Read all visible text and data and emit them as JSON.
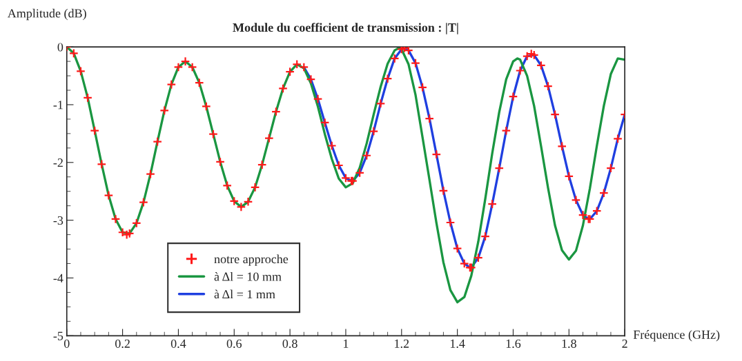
{
  "chart_data": {
    "type": "line",
    "title": "Module du coefficient de transmission : |T|",
    "xlabel": "Fréquence (GHz)",
    "ylabel": "Amplitude (dB)",
    "xlim": [
      0,
      2
    ],
    "ylim": [
      -5,
      0
    ],
    "xticks": [
      0,
      0.2,
      0.4,
      0.6,
      0.8,
      1,
      1.2,
      1.4,
      1.6,
      1.8,
      2
    ],
    "yticks": [
      0,
      {
        "value": -1,
        "label": "-1"
      },
      {
        "value": -2,
        "label": "-2"
      },
      {
        "value": -3,
        "label": "-3"
      },
      {
        "value": -4,
        "label": "-4"
      },
      {
        "value": -5,
        "label": "-5"
      }
    ],
    "grid": false,
    "legend": "bottom left",
    "x": [
      0,
      0.025,
      0.05,
      0.075,
      0.1,
      0.125,
      0.15,
      0.175,
      0.2,
      0.215,
      0.225,
      0.25,
      0.275,
      0.3,
      0.325,
      0.35,
      0.375,
      0.4,
      0.425,
      0.45,
      0.475,
      0.5,
      0.525,
      0.55,
      0.575,
      0.6,
      0.625,
      0.65,
      0.675,
      0.7,
      0.725,
      0.75,
      0.775,
      0.8,
      0.825,
      0.85,
      0.875,
      0.9,
      0.925,
      0.95,
      0.975,
      1.0,
      1.02,
      1.025,
      1.05,
      1.075,
      1.1,
      1.125,
      1.15,
      1.175,
      1.2,
      1.21,
      1.225,
      1.25,
      1.275,
      1.3,
      1.325,
      1.35,
      1.375,
      1.4,
      1.425,
      1.445,
      1.45,
      1.475,
      1.5,
      1.525,
      1.55,
      1.575,
      1.6,
      1.625,
      1.65,
      1.665,
      1.675,
      1.7,
      1.725,
      1.75,
      1.775,
      1.8,
      1.825,
      1.85,
      1.87,
      1.875,
      1.9,
      1.925,
      1.95,
      1.975,
      2.0
    ],
    "series": [
      {
        "name": "à Δl = 1 mm",
        "color": "#1f3fe0",
        "marker": "none",
        "line_style": "solid",
        "x": [
          0.85,
          0.875,
          0.9,
          0.925,
          0.95,
          0.975,
          1.0,
          1.02,
          1.025,
          1.05,
          1.075,
          1.1,
          1.125,
          1.15,
          1.175,
          1.2,
          1.21,
          1.225,
          1.25,
          1.275,
          1.3,
          1.325,
          1.35,
          1.375,
          1.4,
          1.425,
          1.445,
          1.45,
          1.475,
          1.5,
          1.525,
          1.55,
          1.575,
          1.6,
          1.625,
          1.65,
          1.675,
          1.7,
          1.725,
          1.75,
          1.775,
          1.8,
          1.825,
          1.85,
          1.87,
          1.875,
          1.9,
          1.925,
          1.95,
          1.975,
          2.0
        ],
        "values": [
          -0.35,
          -0.56,
          -0.9,
          -1.31,
          -1.71,
          -2.05,
          -2.27,
          -2.32,
          -2.32,
          -2.18,
          -1.88,
          -1.46,
          -0.98,
          -0.55,
          -0.2,
          -0.04,
          -0.02,
          -0.06,
          -0.28,
          -0.7,
          -1.24,
          -1.86,
          -2.49,
          -3.04,
          -3.49,
          -3.75,
          -3.82,
          -3.82,
          -3.65,
          -3.28,
          -2.72,
          -2.1,
          -1.45,
          -0.86,
          -0.41,
          -0.16,
          -0.14,
          -0.32,
          -0.68,
          -1.17,
          -1.72,
          -2.24,
          -2.65,
          -2.91,
          -2.98,
          -2.98,
          -2.84,
          -2.53,
          -2.1,
          -1.59,
          -1.17
        ]
      },
      {
        "name": "à Δl = 10 mm",
        "color": "#1a9641",
        "marker": "none",
        "line_style": "solid",
        "x": [
          0,
          0.025,
          0.05,
          0.075,
          0.1,
          0.125,
          0.15,
          0.175,
          0.2,
          0.225,
          0.25,
          0.275,
          0.3,
          0.325,
          0.35,
          0.375,
          0.4,
          0.425,
          0.45,
          0.475,
          0.5,
          0.525,
          0.55,
          0.575,
          0.6,
          0.625,
          0.65,
          0.675,
          0.7,
          0.725,
          0.75,
          0.775,
          0.8,
          0.825,
          0.85,
          0.875,
          0.9,
          0.925,
          0.95,
          0.975,
          1.0,
          1.025,
          1.05,
          1.075,
          1.1,
          1.125,
          1.15,
          1.175,
          1.19,
          1.2,
          1.225,
          1.25,
          1.275,
          1.3,
          1.325,
          1.35,
          1.375,
          1.4,
          1.425,
          1.45,
          1.475,
          1.5,
          1.525,
          1.55,
          1.575,
          1.6,
          1.615,
          1.625,
          1.65,
          1.675,
          1.7,
          1.725,
          1.75,
          1.775,
          1.8,
          1.825,
          1.85,
          1.875,
          1.9,
          1.925,
          1.95,
          1.975,
          2.0
        ],
        "values": [
          0,
          -0.11,
          -0.42,
          -0.88,
          -1.45,
          -2.03,
          -2.57,
          -2.98,
          -3.21,
          -3.23,
          -3.05,
          -2.69,
          -2.2,
          -1.64,
          -1.1,
          -0.65,
          -0.35,
          -0.25,
          -0.35,
          -0.62,
          -1.03,
          -1.51,
          -1.99,
          -2.4,
          -2.67,
          -2.77,
          -2.68,
          -2.43,
          -2.04,
          -1.58,
          -1.12,
          -0.72,
          -0.43,
          -0.3,
          -0.37,
          -0.63,
          -1.03,
          -1.51,
          -1.94,
          -2.28,
          -2.43,
          -2.36,
          -2.09,
          -1.67,
          -1.17,
          -0.69,
          -0.29,
          -0.06,
          -0.02,
          -0.04,
          -0.3,
          -0.83,
          -1.56,
          -2.3,
          -3.05,
          -3.73,
          -4.21,
          -4.42,
          -4.33,
          -3.96,
          -3.37,
          -2.63,
          -1.84,
          -1.13,
          -0.56,
          -0.25,
          -0.2,
          -0.22,
          -0.5,
          -1.02,
          -1.72,
          -2.44,
          -3.09,
          -3.52,
          -3.68,
          -3.53,
          -3.09,
          -2.45,
          -1.71,
          -1.02,
          -0.47,
          -0.2,
          -0.22
        ]
      },
      {
        "name": "notre approche",
        "color": "#ff1a1a",
        "type": "scatter",
        "marker": "cross",
        "values": [
          0,
          -0.11,
          -0.42,
          -0.88,
          -1.45,
          -2.03,
          -2.57,
          -2.98,
          -3.21,
          -3.25,
          -3.23,
          -3.05,
          -2.69,
          -2.2,
          -1.64,
          -1.1,
          -0.65,
          -0.35,
          -0.25,
          -0.35,
          -0.62,
          -1.03,
          -1.51,
          -1.99,
          -2.4,
          -2.67,
          -2.77,
          -2.68,
          -2.43,
          -2.04,
          -1.58,
          -1.12,
          -0.72,
          -0.43,
          -0.3,
          -0.35,
          -0.56,
          -0.9,
          -1.31,
          -1.71,
          -2.05,
          -2.27,
          -2.32,
          -2.32,
          -2.18,
          -1.88,
          -1.46,
          -0.98,
          -0.55,
          -0.2,
          -0.04,
          -0.02,
          -0.06,
          -0.28,
          -0.7,
          -1.24,
          -1.86,
          -2.49,
          -3.04,
          -3.49,
          -3.75,
          -3.82,
          -3.82,
          -3.65,
          -3.28,
          -2.72,
          -2.1,
          -1.45,
          -0.86,
          -0.41,
          -0.16,
          -0.12,
          -0.14,
          -0.32,
          -0.68,
          -1.17,
          -1.72,
          -2.24,
          -2.65,
          -2.91,
          -2.98,
          -2.98,
          -2.84,
          -2.53,
          -2.1,
          -1.59,
          -1.17
        ]
      }
    ]
  }
}
